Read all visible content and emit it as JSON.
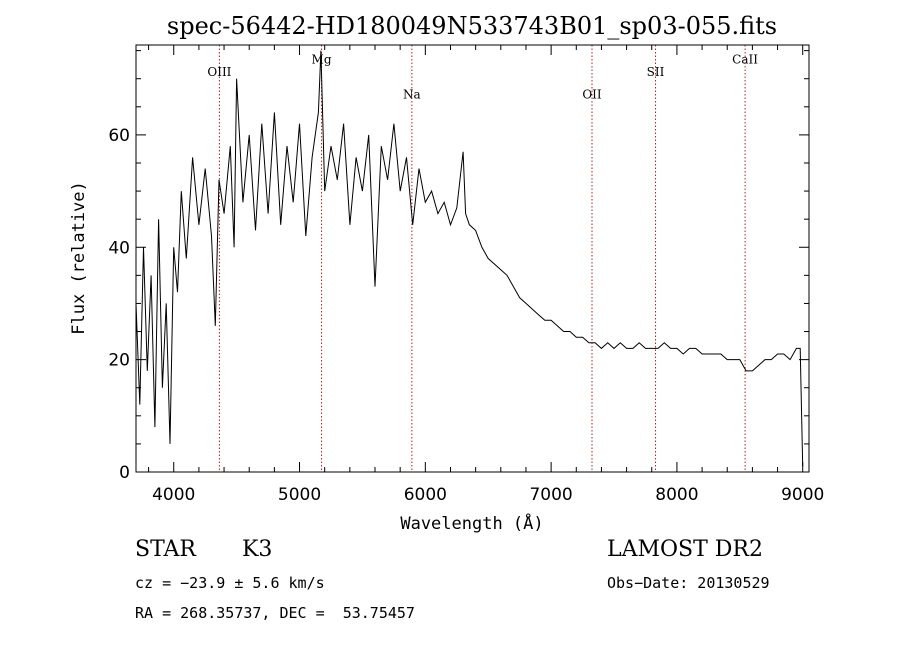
{
  "chart_data": {
    "type": "line",
    "title": "spec-56442-HD180049N533743B01_sp03-055.fits",
    "xlabel": "Wavelength (Å)",
    "ylabel": "Flux (relative)",
    "xlim": [
      3700,
      9050
    ],
    "ylim": [
      0,
      76
    ],
    "xticks": [
      4000,
      5000,
      6000,
      7000,
      8000,
      9000
    ],
    "yticks": [
      0,
      20,
      40,
      60
    ],
    "grid": false,
    "series": [
      {
        "x": [
          3700,
          3730,
          3760,
          3790,
          3820,
          3850,
          3880,
          3910,
          3940,
          3970,
          4000,
          4030,
          4060,
          4100,
          4150,
          4200,
          4250,
          4300,
          4330,
          4360,
          4400,
          4450,
          4480,
          4500,
          4550,
          4600,
          4650,
          4700,
          4750,
          4800,
          4850,
          4900,
          4950,
          5000,
          5050,
          5100,
          5150,
          5170,
          5200,
          5250,
          5300,
          5350,
          5400,
          5450,
          5500,
          5550,
          5600,
          5650,
          5700,
          5750,
          5800,
          5850,
          5900,
          5950,
          6000,
          6050,
          6100,
          6150,
          6200,
          6250,
          6300,
          6320,
          6350,
          6400,
          6450,
          6500,
          6550,
          6600,
          6650,
          6700,
          6750,
          6800,
          6850,
          6900,
          6950,
          7000,
          7050,
          7100,
          7150,
          7200,
          7250,
          7300,
          7350,
          7400,
          7450,
          7500,
          7550,
          7600,
          7650,
          7700,
          7750,
          7800,
          7850,
          7900,
          7950,
          8000,
          8050,
          8100,
          8150,
          8200,
          8250,
          8300,
          8350,
          8400,
          8450,
          8500,
          8550,
          8600,
          8650,
          8700,
          8750,
          8800,
          8850,
          8900,
          8950,
          8980,
          9000
        ],
        "y": [
          30,
          12,
          40,
          18,
          35,
          8,
          45,
          15,
          30,
          5,
          40,
          32,
          50,
          38,
          56,
          44,
          54,
          42,
          26,
          52,
          46,
          58,
          40,
          70,
          48,
          60,
          43,
          62,
          46,
          64,
          44,
          58,
          48,
          62,
          42,
          56,
          64,
          75,
          50,
          58,
          52,
          62,
          44,
          56,
          50,
          60,
          33,
          58,
          52,
          62,
          50,
          56,
          44,
          54,
          48,
          50,
          46,
          48,
          44,
          47,
          57,
          46,
          44,
          43,
          40,
          38,
          37,
          36,
          35,
          33,
          31,
          30,
          29,
          28,
          27,
          27,
          26,
          25,
          25,
          24,
          24,
          23,
          23,
          22,
          23,
          22,
          23,
          22,
          22,
          23,
          22,
          22,
          22,
          23,
          22,
          22,
          21,
          22,
          22,
          21,
          21,
          21,
          21,
          20,
          20,
          20,
          18,
          18,
          19,
          20,
          20,
          21,
          21,
          20,
          22,
          22,
          1
        ]
      }
    ],
    "lines": [
      {
        "label": "OIII",
        "x": 4363,
        "label_y": 70.5
      },
      {
        "label": "Mg",
        "x": 5175,
        "label_y": 72.7
      },
      {
        "label": "Na",
        "x": 5893,
        "label_y": 66.5
      },
      {
        "label": "OII",
        "x": 7325,
        "label_y": 66.5
      },
      {
        "label": "SII",
        "x": 7830,
        "label_y": 70.5
      },
      {
        "label": "CaII",
        "x": 8542,
        "label_y": 72.7
      }
    ]
  },
  "info": {
    "class_label": "STAR",
    "subclass": "K3",
    "survey": "LAMOST DR2",
    "cz": "cz = −23.9 ± 5.6 km/s",
    "obs_date": "Obs−Date: 20130529",
    "coords": "RA = 268.35737, DEC =  53.75457"
  }
}
